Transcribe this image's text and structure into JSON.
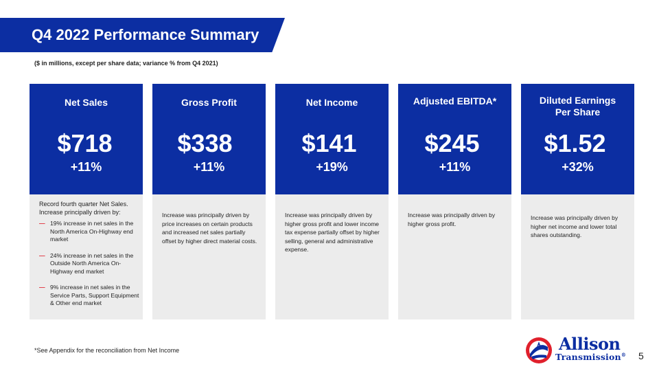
{
  "header": {
    "title": "Q4 2022 Performance Summary",
    "subtitle": "($ in millions, except per share data; variance % from Q4 2021)"
  },
  "cards": [
    {
      "heading": "Net Sales",
      "value": "$718",
      "change": "+11%",
      "intro": "Record fourth quarter Net Sales. Increase principally driven by:",
      "bullets": [
        "19% increase in net sales in the North America On-Highway end market",
        "24% increase in net sales in the Outside North America On-Highway end market",
        "9% increase in net sales in the Service Parts, Support Equipment & Other end market"
      ]
    },
    {
      "heading": "Gross Profit",
      "value": "$338",
      "change": "+11%",
      "description": "Increase was principally driven by price increases on certain products and increased net sales partially offset by higher direct material costs."
    },
    {
      "heading": "Net Income",
      "value": "$141",
      "change": "+19%",
      "description": "Increase was principally driven by higher gross profit and lower income tax expense partially offset by higher selling, general and administrative expense."
    },
    {
      "heading": "Adjusted EBITDA*",
      "value": "$245",
      "change": "+11%",
      "description": "Increase was principally driven by higher gross profit."
    },
    {
      "heading_line1": "Diluted Earnings",
      "heading_line2": "Per Share",
      "value": "$1.52",
      "change": "+32%",
      "description": "Increase was principally driven by higher net income and lower total shares outstanding."
    }
  ],
  "footnote": "*See Appendix for the reconciliation from Net Income",
  "logo": {
    "line1": "Allison",
    "line2": "Transmission",
    "mark": "®"
  },
  "page_number": "5",
  "colors": {
    "brand_blue": "#0c2ea2",
    "panel_gray": "#ececec",
    "bullet_red": "#e0202c"
  }
}
